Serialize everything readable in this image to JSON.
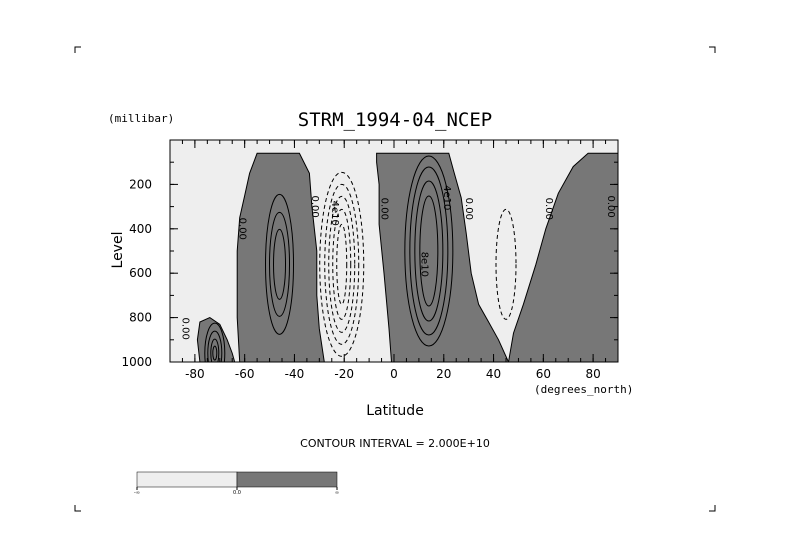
{
  "chart_data": {
    "type": "contour",
    "title": "STRM_1994-04_NCEP",
    "xlabel": "Latitude",
    "xunits": "(degrees_north)",
    "ylabel": "Level",
    "yunits": "(millibar)",
    "xlim": [
      -90,
      90
    ],
    "ylim": [
      1000,
      0
    ],
    "y_inverted": true,
    "x_ticks": [
      -80,
      -60,
      -40,
      -20,
      0,
      20,
      40,
      60,
      80
    ],
    "y_ticks": [
      200,
      400,
      600,
      800,
      1000
    ],
    "contour_interval_text": "CONTOUR INTERVAL = 2.000E+10",
    "contour_interval": 20000000000.0,
    "contour_labels": [
      {
        "text": "0.00",
        "lat": -62,
        "lev": 400
      },
      {
        "text": "0.00",
        "lat": -33,
        "lev": 300
      },
      {
        "text": "4e10",
        "lat": -25,
        "lev": 330
      },
      {
        "text": "0.00",
        "lat": -5,
        "lev": 310
      },
      {
        "text": "4e10",
        "lat": 20,
        "lev": 260
      },
      {
        "text": "8e10",
        "lat": 11,
        "lev": 560
      },
      {
        "text": "0.00",
        "lat": 29,
        "lev": 310
      },
      {
        "text": "0.00",
        "lat": 61,
        "lev": 310
      },
      {
        "text": "0.00",
        "lat": 86,
        "lev": 300
      },
      {
        "text": "0.00",
        "lat": -85,
        "lev": 850
      }
    ],
    "legend": {
      "levels": [
        "-∞",
        "0.0",
        "∞"
      ],
      "colors": [
        "#eeeeee",
        "#777777"
      ]
    }
  },
  "colors": {
    "positive_fill": "#777777",
    "negative_fill": "#eeeeee",
    "line": "#000000"
  }
}
